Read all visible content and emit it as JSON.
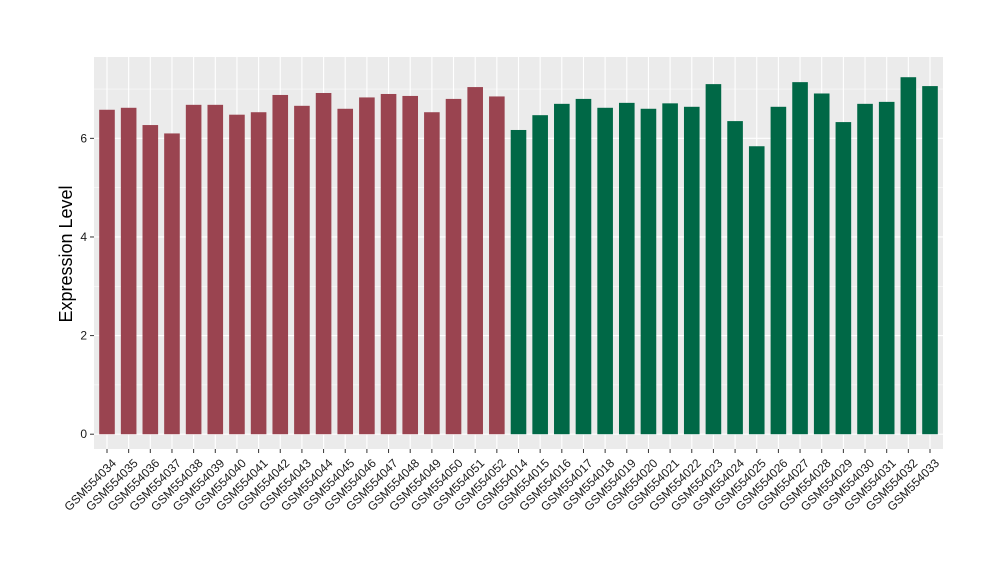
{
  "chart_data": {
    "type": "bar",
    "title": "",
    "xlabel": "",
    "ylabel": "Expression Level",
    "ylim": [
      -0.3,
      7.65
    ],
    "yticks": [
      0,
      2,
      4,
      6
    ],
    "grid": true,
    "colors": {
      "group1": "#9A4450",
      "group2": "#006846",
      "panel": "#EBEBEB",
      "grid": "#FFFFFF"
    },
    "categories": [
      "GSM554034",
      "GSM554035",
      "GSM554036",
      "GSM554037",
      "GSM554038",
      "GSM554039",
      "GSM554040",
      "GSM554041",
      "GSM554042",
      "GSM554043",
      "GSM554044",
      "GSM554045",
      "GSM554046",
      "GSM554047",
      "GSM554048",
      "GSM554049",
      "GSM554050",
      "GSM554051",
      "GSM554052",
      "GSM554014",
      "GSM554015",
      "GSM554016",
      "GSM554017",
      "GSM554018",
      "GSM554019",
      "GSM554020",
      "GSM554021",
      "GSM554022",
      "GSM554023",
      "GSM554024",
      "GSM554025",
      "GSM554026",
      "GSM554027",
      "GSM554028",
      "GSM554029",
      "GSM554030",
      "GSM554031",
      "GSM554032",
      "GSM554033"
    ],
    "values": [
      6.58,
      6.62,
      6.27,
      6.1,
      6.68,
      6.68,
      6.48,
      6.53,
      6.88,
      6.66,
      6.92,
      6.6,
      6.83,
      6.9,
      6.86,
      6.53,
      6.8,
      7.04,
      6.85,
      6.17,
      6.47,
      6.7,
      6.8,
      6.62,
      6.72,
      6.6,
      6.71,
      6.64,
      7.1,
      6.35,
      5.84,
      6.64,
      7.14,
      6.91,
      6.33,
      6.7,
      6.74,
      7.24,
      7.06
    ],
    "groups": [
      1,
      1,
      1,
      1,
      1,
      1,
      1,
      1,
      1,
      1,
      1,
      1,
      1,
      1,
      1,
      1,
      1,
      1,
      1,
      2,
      2,
      2,
      2,
      2,
      2,
      2,
      2,
      2,
      2,
      2,
      2,
      2,
      2,
      2,
      2,
      2,
      2,
      2,
      2
    ]
  }
}
